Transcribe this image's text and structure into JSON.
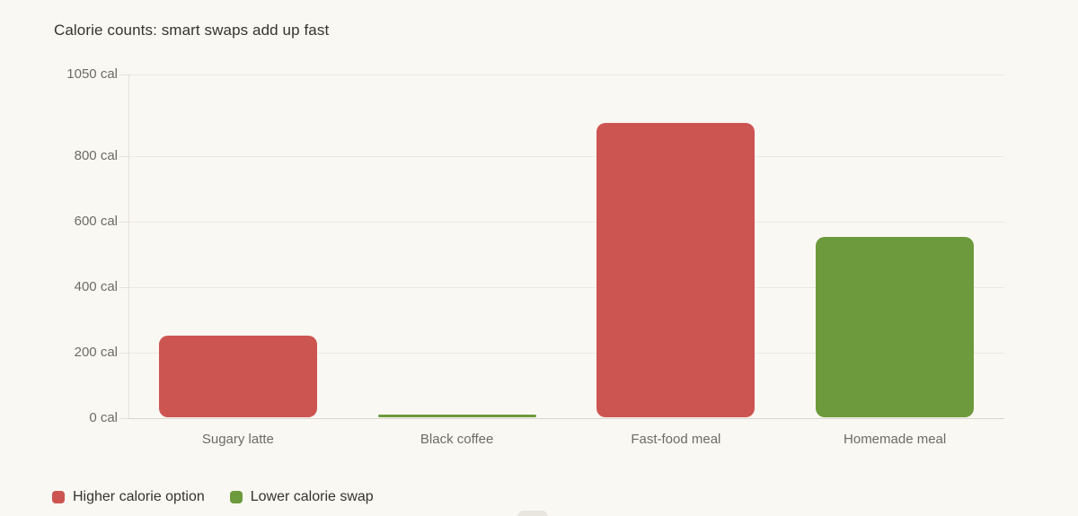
{
  "chart_data": {
    "type": "bar",
    "title": "Calorie counts: smart swaps add up fast",
    "categories": [
      "Sugary latte",
      "Black coffee",
      "Fast-food meal",
      "Homemade meal"
    ],
    "values": [
      250,
      5,
      900,
      550
    ],
    "unit": "cal",
    "bar_colors": [
      "#cd5551",
      "#6d9a3c",
      "#cd5551",
      "#6d9a3c"
    ],
    "y_ticks": [
      0,
      200,
      400,
      600,
      800,
      1050
    ],
    "y_tick_labels": [
      "0 cal",
      "200 cal",
      "400 cal",
      "600 cal",
      "800 cal",
      "1050 cal"
    ],
    "ylim": [
      0,
      1050
    ],
    "grid": true,
    "legend_position": "bottom-left",
    "legend": [
      {
        "label": "Higher calorie option",
        "color": "#cd5551"
      },
      {
        "label": "Lower calorie swap",
        "color": "#6d9a3c"
      }
    ]
  },
  "colors": {
    "background": "#faf8f3",
    "gridline": "#ece9e2",
    "axis_line": "#d8d5ce",
    "title_text": "#34332f",
    "tick_text": "#6c6b64",
    "legend_text": "#34332f"
  }
}
